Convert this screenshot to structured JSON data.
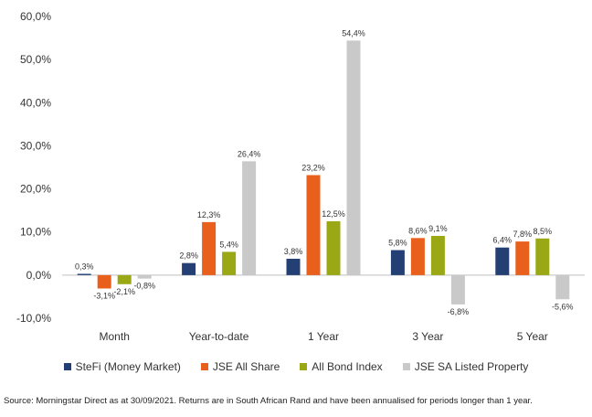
{
  "chart_data": {
    "type": "bar",
    "categories": [
      "Month",
      "Year-to-date",
      "1 Year",
      "3 Year",
      "5 Year"
    ],
    "series": [
      {
        "name": "SteFi (Money Market)",
        "color": "#243f73",
        "values": [
          0.3,
          2.8,
          3.8,
          5.8,
          6.4
        ],
        "labels": [
          "0,3%",
          "2,8%",
          "3,8%",
          "5,8%",
          "6,4%"
        ]
      },
      {
        "name": "JSE All Share",
        "color": "#e8601c",
        "values": [
          -3.1,
          12.3,
          23.2,
          8.6,
          7.8
        ],
        "labels": [
          "-3,1%",
          "12,3%",
          "23,2%",
          "8,6%",
          "7,8%"
        ]
      },
      {
        "name": "All Bond Index",
        "color": "#9aa816",
        "values": [
          -2.1,
          5.4,
          12.5,
          9.1,
          8.5
        ],
        "labels": [
          "-2,1%",
          "5,4%",
          "12,5%",
          "9,1%",
          "8,5%"
        ]
      },
      {
        "name": "JSE SA Listed Property",
        "color": "#c9c9c9",
        "values": [
          -0.8,
          26.4,
          54.4,
          -6.8,
          -5.6
        ],
        "labels": [
          "-0,8%",
          "26,4%",
          "54,4%",
          "-6,8%",
          "-5,6%"
        ]
      }
    ],
    "ylim": [
      -10,
      60
    ],
    "yticks": [
      -10,
      0,
      10,
      20,
      30,
      40,
      50,
      60
    ],
    "ytick_labels": [
      "-10,0%",
      "0,0%",
      "10,0%",
      "20,0%",
      "30,0%",
      "40,0%",
      "50,0%",
      "60,0%"
    ],
    "xlabel": "",
    "ylabel": "",
    "title": "",
    "grid": false,
    "legend_position": "bottom"
  },
  "source_note": "Source: Morningstar Direct as at 30/09/2021. Returns are in South African Rand and have been annualised for periods longer than 1 year."
}
